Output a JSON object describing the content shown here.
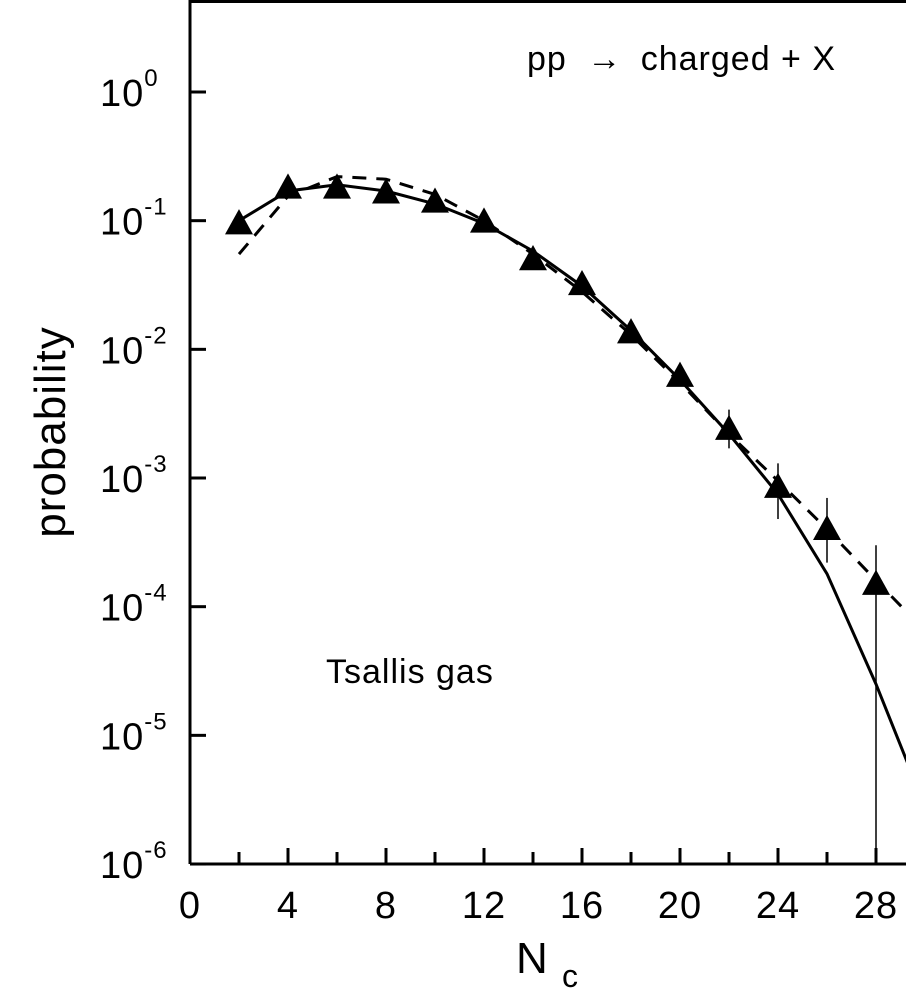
{
  "chart_data": {
    "type": "scatter",
    "title": "",
    "xlabel": "N",
    "xlabel_sub": "c",
    "ylabel": "probability",
    "xlim": [
      0,
      30
    ],
    "ylim": [
      1e-06,
      4
    ],
    "yscale": "log",
    "grid": false,
    "x_ticks": [
      0,
      4,
      8,
      12,
      16,
      20,
      24,
      28
    ],
    "y_ticks": [
      {
        "value": 1,
        "base": "10",
        "exp": "0"
      },
      {
        "value": 0.1,
        "base": "10",
        "exp": "-1"
      },
      {
        "value": 0.01,
        "base": "10",
        "exp": "-2"
      },
      {
        "value": 0.001,
        "base": "10",
        "exp": "-3"
      },
      {
        "value": 0.0001,
        "base": "10",
        "exp": "-4"
      },
      {
        "value": 1e-05,
        "base": "10",
        "exp": "-5"
      },
      {
        "value": 1e-06,
        "base": "10",
        "exp": "-6"
      }
    ],
    "annotations": {
      "reaction": "pp",
      "reaction_arrow": "→",
      "reaction_products": "charged + X",
      "model": "Tsallis gas"
    },
    "series": [
      {
        "style": "markers",
        "marker": "filled-triangle",
        "x": [
          2,
          4,
          6,
          8,
          10,
          12,
          14,
          16,
          18,
          20,
          22,
          24,
          26,
          28
        ],
        "y": [
          0.095,
          0.18,
          0.18,
          0.165,
          0.14,
          0.098,
          0.05,
          0.032,
          0.0135,
          0.0062,
          0.0024,
          0.00085,
          0.0004,
          0.00015
        ],
        "err_low": [
          null,
          null,
          null,
          null,
          null,
          null,
          null,
          null,
          null,
          null,
          0.0017,
          0.00048,
          0.00022,
          1e-06
        ],
        "err_high": [
          null,
          null,
          null,
          null,
          null,
          null,
          null,
          null,
          null,
          null,
          0.0034,
          0.0013,
          0.0007,
          0.0003
        ]
      },
      {
        "style": "solid",
        "x": [
          2,
          4,
          6,
          8,
          10,
          12,
          14,
          16,
          18,
          20,
          22,
          24,
          26,
          28,
          30
        ],
        "y": [
          0.1,
          0.17,
          0.19,
          0.17,
          0.135,
          0.095,
          0.058,
          0.031,
          0.014,
          0.0058,
          0.0022,
          0.00075,
          0.00018,
          2.5e-05,
          2.8e-06
        ]
      },
      {
        "style": "dashed",
        "x": [
          2,
          4,
          6,
          8,
          10,
          12,
          14,
          16,
          18,
          20,
          22,
          24,
          26,
          28,
          30
        ],
        "y": [
          0.055,
          0.155,
          0.22,
          0.21,
          0.16,
          0.1,
          0.055,
          0.028,
          0.013,
          0.0055,
          0.0022,
          0.00095,
          0.0004,
          0.00016,
          6.5e-05
        ]
      }
    ]
  }
}
